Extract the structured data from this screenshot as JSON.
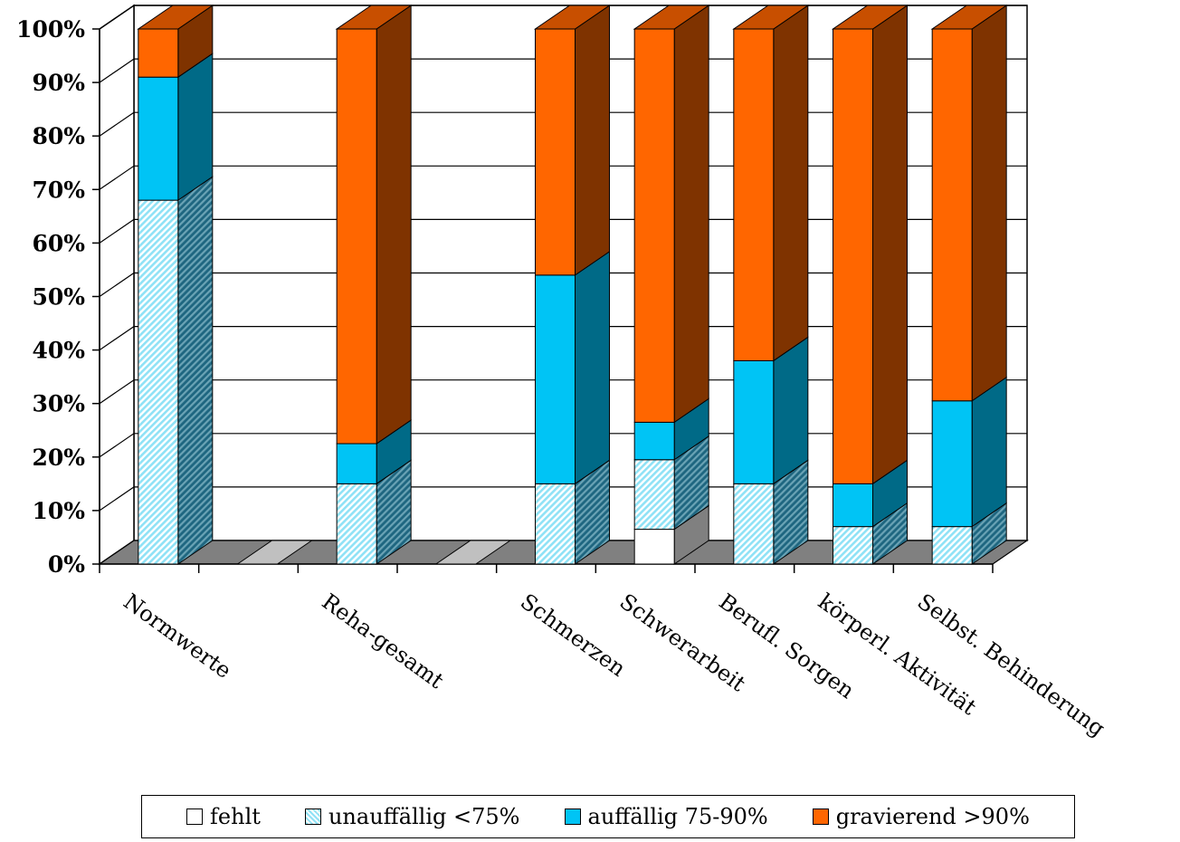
{
  "chart_data": {
    "type": "bar",
    "stacked": true,
    "three_d": true,
    "categories": [
      "Normwerte",
      "",
      "Reha-gesamt",
      "",
      "Schmerzen",
      "Schwerarbeit",
      "Berufl. Sorgen",
      "körperl. Aktivität",
      "Selbst. Behinderung"
    ],
    "series": [
      {
        "name": "fehlt",
        "color": "#ffffff",
        "values": [
          0,
          0,
          0,
          0,
          0,
          6.5,
          0,
          0,
          0
        ]
      },
      {
        "name": "unauffällig <75%",
        "color": "#8fe2f6",
        "pattern": "hatched",
        "values": [
          68,
          0,
          15,
          0,
          15,
          13,
          15,
          7,
          7
        ]
      },
      {
        "name": "auffällig 75-90%",
        "color": "#00c4f5",
        "values": [
          23,
          0,
          7.5,
          0,
          39,
          7,
          23,
          8,
          23.5
        ]
      },
      {
        "name": "gravierend >90%",
        "color": "#ff6600",
        "values": [
          9,
          0,
          77.5,
          0,
          46,
          73.5,
          62,
          85,
          69.5
        ]
      }
    ],
    "yticks": [
      "0%",
      "10%",
      "20%",
      "30%",
      "40%",
      "50%",
      "60%",
      "70%",
      "80%",
      "90%",
      "100%"
    ],
    "ylim": [
      0,
      100
    ],
    "grid": true,
    "legend_position": "bottom",
    "xlabel": "",
    "ylabel": ""
  }
}
